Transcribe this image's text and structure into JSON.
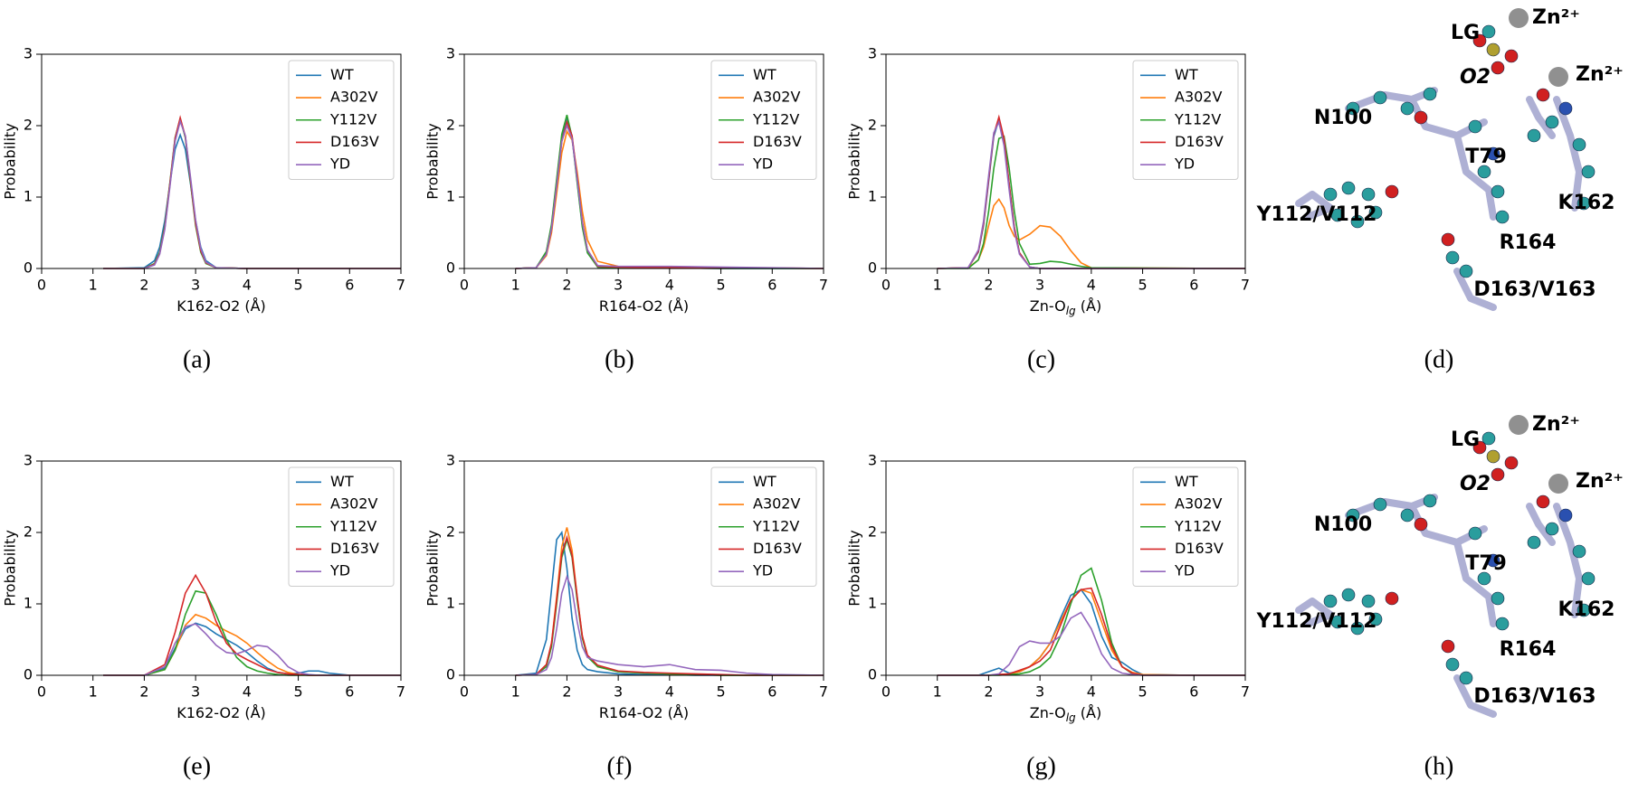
{
  "chart_data": [
    {
      "type": "line",
      "panel_label": "(a)",
      "xlabel": "K162-O2 (Å)",
      "ylabel": "Probability",
      "xlim": [
        0,
        7
      ],
      "ylim": [
        0,
        3
      ],
      "xticks": [
        0,
        1,
        2,
        3,
        4,
        5,
        6,
        7
      ],
      "yticks": [
        0,
        1,
        2,
        3
      ],
      "legend": "upper right",
      "x": [
        1.2,
        2.0,
        2.2,
        2.3,
        2.4,
        2.5,
        2.6,
        2.7,
        2.8,
        2.9,
        3.0,
        3.1,
        3.2,
        3.4,
        4.0,
        7.0
      ],
      "series": [
        {
          "name": "WT",
          "color": "#1f77b4",
          "values": [
            0,
            0.01,
            0.11,
            0.3,
            0.67,
            1.19,
            1.67,
            1.87,
            1.67,
            1.19,
            0.67,
            0.3,
            0.11,
            0.01,
            0,
            0
          ]
        },
        {
          "name": "A302V",
          "color": "#ff7f0e",
          "values": [
            0,
            0,
            0.06,
            0.22,
            0.58,
            1.18,
            1.8,
            2.08,
            1.85,
            1.25,
            0.64,
            0.25,
            0.08,
            0.01,
            0,
            0
          ]
        },
        {
          "name": "Y112V",
          "color": "#2ca02c",
          "values": [
            0,
            0,
            0.07,
            0.23,
            0.6,
            1.21,
            1.83,
            2.1,
            1.83,
            1.21,
            0.6,
            0.23,
            0.07,
            0.01,
            0,
            0
          ]
        },
        {
          "name": "D163V",
          "color": "#d62728",
          "values": [
            0,
            0,
            0.06,
            0.21,
            0.57,
            1.19,
            1.82,
            2.11,
            1.85,
            1.24,
            0.63,
            0.25,
            0.08,
            0.01,
            0,
            0
          ]
        },
        {
          "name": "YD",
          "color": "#9467bd",
          "values": [
            0,
            0,
            0.05,
            0.2,
            0.55,
            1.15,
            1.78,
            2.06,
            1.86,
            1.28,
            0.68,
            0.28,
            0.09,
            0.01,
            0,
            0
          ]
        }
      ]
    },
    {
      "type": "line",
      "panel_label": "(b)",
      "xlabel": "R164-O2 (Å)",
      "ylabel": "Probability",
      "xlim": [
        0,
        7
      ],
      "ylim": [
        0,
        3
      ],
      "xticks": [
        0,
        1,
        2,
        3,
        4,
        5,
        6,
        7
      ],
      "yticks": [
        0,
        1,
        2,
        3
      ],
      "legend": "upper right",
      "x": [
        1.0,
        1.4,
        1.6,
        1.7,
        1.8,
        1.9,
        2.0,
        2.1,
        2.2,
        2.3,
        2.4,
        2.6,
        3.0,
        4.0,
        5.0,
        7.0
      ],
      "series": [
        {
          "name": "WT",
          "color": "#1f77b4",
          "values": [
            0,
            0.01,
            0.23,
            0.6,
            1.22,
            1.85,
            2.12,
            1.85,
            1.22,
            0.6,
            0.23,
            0.02,
            0.01,
            0.01,
            0,
            0
          ]
        },
        {
          "name": "A302V",
          "color": "#ff7f0e",
          "values": [
            0,
            0.01,
            0.18,
            0.5,
            1.05,
            1.62,
            1.92,
            1.8,
            1.35,
            0.8,
            0.4,
            0.1,
            0.03,
            0.02,
            0.01,
            0
          ]
        },
        {
          "name": "Y112V",
          "color": "#2ca02c",
          "values": [
            0,
            0.01,
            0.24,
            0.62,
            1.25,
            1.88,
            2.15,
            1.84,
            1.2,
            0.58,
            0.22,
            0.02,
            0.01,
            0.01,
            0,
            0
          ]
        },
        {
          "name": "D163V",
          "color": "#d62728",
          "values": [
            0,
            0.01,
            0.2,
            0.55,
            1.15,
            1.78,
            2.05,
            1.86,
            1.28,
            0.66,
            0.26,
            0.03,
            0.02,
            0.01,
            0.01,
            0
          ]
        },
        {
          "name": "YD",
          "color": "#9467bd",
          "values": [
            0,
            0.01,
            0.2,
            0.56,
            1.16,
            1.78,
            2.0,
            1.82,
            1.25,
            0.65,
            0.26,
            0.04,
            0.03,
            0.03,
            0.02,
            0
          ]
        }
      ]
    },
    {
      "type": "line",
      "panel_label": "(c)",
      "xlabel": "Zn-O",
      "xlabel_sub": "lg",
      "xlabel_unit": " (Å)",
      "ylabel": "Probability",
      "xlim": [
        0,
        7
      ],
      "ylim": [
        0,
        3
      ],
      "xticks": [
        0,
        1,
        2,
        3,
        4,
        5,
        6,
        7
      ],
      "yticks": [
        0,
        1,
        2,
        3
      ],
      "legend": "upper right",
      "x": [
        1.0,
        1.6,
        1.8,
        1.9,
        2.0,
        2.1,
        2.2,
        2.3,
        2.4,
        2.5,
        2.6,
        2.8,
        3.0,
        3.2,
        3.4,
        3.6,
        3.8,
        4.0,
        7.0
      ],
      "series": [
        {
          "name": "WT",
          "color": "#1f77b4",
          "values": [
            0,
            0.01,
            0.23,
            0.6,
            1.22,
            1.85,
            2.08,
            1.8,
            1.18,
            0.58,
            0.22,
            0.02,
            0,
            0,
            0,
            0,
            0,
            0,
            0
          ]
        },
        {
          "name": "A302V",
          "color": "#ff7f0e",
          "values": [
            0,
            0.01,
            0.12,
            0.3,
            0.6,
            0.88,
            0.97,
            0.85,
            0.6,
            0.45,
            0.4,
            0.48,
            0.6,
            0.58,
            0.45,
            0.25,
            0.08,
            0.01,
            0
          ]
        },
        {
          "name": "Y112V",
          "color": "#2ca02c",
          "values": [
            0,
            0,
            0.12,
            0.35,
            0.8,
            1.4,
            1.82,
            1.85,
            1.4,
            0.8,
            0.35,
            0.06,
            0.07,
            0.1,
            0.09,
            0.06,
            0.03,
            0.01,
            0
          ]
        },
        {
          "name": "D163V",
          "color": "#d62728",
          "values": [
            0,
            0.01,
            0.24,
            0.62,
            1.25,
            1.88,
            2.12,
            1.82,
            1.18,
            0.58,
            0.22,
            0.02,
            0,
            0,
            0,
            0,
            0,
            0,
            0
          ]
        },
        {
          "name": "YD",
          "color": "#9467bd",
          "values": [
            0,
            0.01,
            0.26,
            0.66,
            1.3,
            1.9,
            2.05,
            1.72,
            1.1,
            0.53,
            0.2,
            0.02,
            0,
            0,
            0,
            0,
            0,
            0,
            0
          ]
        }
      ]
    },
    {
      "type": "line",
      "panel_label": "(e)",
      "xlabel": "K162-O2 (Å)",
      "ylabel": "Probability",
      "xlim": [
        0,
        7
      ],
      "ylim": [
        0,
        3
      ],
      "xticks": [
        0,
        1,
        2,
        3,
        4,
        5,
        6,
        7
      ],
      "yticks": [
        0,
        1,
        2,
        3
      ],
      "legend": "upper right",
      "x": [
        1.2,
        2.0,
        2.4,
        2.6,
        2.8,
        3.0,
        3.2,
        3.4,
        3.6,
        3.8,
        4.0,
        4.2,
        4.4,
        4.6,
        4.8,
        5.0,
        5.2,
        5.4,
        5.6,
        6.0,
        7.0
      ],
      "series": [
        {
          "name": "WT",
          "color": "#1f77b4",
          "values": [
            0,
            0,
            0.1,
            0.38,
            0.65,
            0.73,
            0.68,
            0.58,
            0.5,
            0.42,
            0.32,
            0.2,
            0.1,
            0.04,
            0.02,
            0.03,
            0.06,
            0.06,
            0.03,
            0,
            0
          ]
        },
        {
          "name": "A302V",
          "color": "#ff7f0e",
          "values": [
            0,
            0,
            0.08,
            0.35,
            0.7,
            0.85,
            0.8,
            0.7,
            0.62,
            0.55,
            0.45,
            0.32,
            0.2,
            0.1,
            0.04,
            0.01,
            0,
            0,
            0,
            0,
            0
          ]
        },
        {
          "name": "Y112V",
          "color": "#2ca02c",
          "values": [
            0,
            0,
            0.08,
            0.35,
            0.85,
            1.18,
            1.15,
            0.85,
            0.5,
            0.25,
            0.12,
            0.06,
            0.03,
            0.01,
            0,
            0,
            0,
            0,
            0,
            0,
            0
          ]
        },
        {
          "name": "D163V",
          "color": "#d62728",
          "values": [
            0,
            0,
            0.15,
            0.6,
            1.15,
            1.4,
            1.15,
            0.75,
            0.45,
            0.3,
            0.22,
            0.15,
            0.08,
            0.04,
            0.02,
            0.01,
            0,
            0,
            0,
            0,
            0
          ]
        },
        {
          "name": "YD",
          "color": "#9467bd",
          "values": [
            0,
            0,
            0.12,
            0.45,
            0.68,
            0.72,
            0.58,
            0.42,
            0.32,
            0.3,
            0.35,
            0.42,
            0.4,
            0.28,
            0.12,
            0.04,
            0.01,
            0,
            0,
            0,
            0
          ]
        }
      ]
    },
    {
      "type": "line",
      "panel_label": "(f)",
      "xlabel": "R164-O2 (Å)",
      "ylabel": "Probability",
      "xlim": [
        0,
        7
      ],
      "ylim": [
        0,
        3
      ],
      "xticks": [
        0,
        1,
        2,
        3,
        4,
        5,
        6,
        7
      ],
      "yticks": [
        0,
        1,
        2,
        3
      ],
      "legend": "upper right",
      "x": [
        1.0,
        1.4,
        1.6,
        1.7,
        1.8,
        1.9,
        2.0,
        2.1,
        2.2,
        2.3,
        2.4,
        2.6,
        3.0,
        3.5,
        4.0,
        4.5,
        5.0,
        5.5,
        6.0,
        7.0
      ],
      "series": [
        {
          "name": "WT",
          "color": "#1f77b4",
          "values": [
            0,
            0.03,
            0.5,
            1.2,
            1.9,
            2.0,
            1.5,
            0.8,
            0.35,
            0.15,
            0.08,
            0.05,
            0.02,
            0.01,
            0.01,
            0,
            0,
            0,
            0,
            0
          ]
        },
        {
          "name": "A302V",
          "color": "#ff7f0e",
          "values": [
            0,
            0.01,
            0.15,
            0.45,
            1.1,
            1.8,
            2.07,
            1.75,
            1.1,
            0.55,
            0.28,
            0.12,
            0.05,
            0.03,
            0.02,
            0.01,
            0,
            0,
            0,
            0
          ]
        },
        {
          "name": "Y112V",
          "color": "#2ca02c",
          "values": [
            0,
            0.01,
            0.12,
            0.4,
            1.0,
            1.65,
            1.9,
            1.65,
            1.05,
            0.52,
            0.26,
            0.12,
            0.05,
            0.03,
            0.02,
            0.01,
            0,
            0,
            0,
            0
          ]
        },
        {
          "name": "D163V",
          "color": "#d62728",
          "values": [
            0,
            0.01,
            0.15,
            0.45,
            1.05,
            1.7,
            1.93,
            1.68,
            1.1,
            0.55,
            0.28,
            0.14,
            0.06,
            0.04,
            0.03,
            0.02,
            0.01,
            0,
            0,
            0
          ]
        },
        {
          "name": "YD",
          "color": "#9467bd",
          "values": [
            0,
            0.01,
            0.08,
            0.25,
            0.65,
            1.15,
            1.38,
            1.2,
            0.75,
            0.4,
            0.25,
            0.2,
            0.15,
            0.12,
            0.15,
            0.08,
            0.07,
            0.03,
            0.01,
            0
          ]
        }
      ]
    },
    {
      "type": "line",
      "panel_label": "(g)",
      "xlabel": "Zn-O",
      "xlabel_sub": "lg",
      "xlabel_unit": " (Å)",
      "ylabel": "Probability",
      "xlim": [
        0,
        7
      ],
      "ylim": [
        0,
        3
      ],
      "xticks": [
        0,
        1,
        2,
        3,
        4,
        5,
        6,
        7
      ],
      "yticks": [
        0,
        1,
        2,
        3
      ],
      "legend": "upper right",
      "x": [
        1.0,
        1.8,
        2.0,
        2.2,
        2.4,
        2.6,
        2.8,
        3.0,
        3.2,
        3.4,
        3.6,
        3.8,
        4.0,
        4.2,
        4.4,
        4.6,
        4.8,
        5.0,
        6.0,
        7.0
      ],
      "series": [
        {
          "name": "WT",
          "color": "#1f77b4",
          "values": [
            0,
            0,
            0.05,
            0.1,
            0.03,
            0.05,
            0.12,
            0.25,
            0.45,
            0.8,
            1.12,
            1.2,
            1.0,
            0.55,
            0.25,
            0.18,
            0.08,
            0.01,
            0,
            0
          ]
        },
        {
          "name": "A302V",
          "color": "#ff7f0e",
          "values": [
            0,
            0,
            0,
            0.01,
            0.02,
            0.05,
            0.12,
            0.25,
            0.45,
            0.75,
            1.05,
            1.2,
            1.15,
            0.75,
            0.35,
            0.12,
            0.04,
            0.01,
            0,
            0
          ]
        },
        {
          "name": "Y112V",
          "color": "#2ca02c",
          "values": [
            0,
            0,
            0,
            0,
            0.01,
            0.02,
            0.05,
            0.12,
            0.25,
            0.55,
            1.0,
            1.4,
            1.5,
            1.05,
            0.45,
            0.12,
            0.02,
            0,
            0,
            0
          ]
        },
        {
          "name": "D163V",
          "color": "#d62728",
          "values": [
            0,
            0,
            0,
            0.01,
            0.02,
            0.07,
            0.12,
            0.2,
            0.35,
            0.7,
            1.05,
            1.2,
            1.22,
            0.85,
            0.4,
            0.12,
            0.03,
            0,
            0,
            0
          ]
        },
        {
          "name": "YD",
          "color": "#9467bd",
          "values": [
            0,
            0,
            0,
            0.02,
            0.15,
            0.4,
            0.48,
            0.45,
            0.45,
            0.55,
            0.8,
            0.88,
            0.65,
            0.3,
            0.1,
            0.03,
            0.01,
            0,
            0,
            0
          ]
        }
      ]
    }
  ],
  "structures": [
    {
      "panel_label": "(d)",
      "labels": [
        "Zn²⁺",
        "LG",
        "Zn²⁺",
        "O2",
        "N100",
        "T79",
        "K162",
        "Y112/V112",
        "R164",
        "D163/V163"
      ]
    },
    {
      "panel_label": "(h)",
      "labels": [
        "Zn²⁺",
        "LG",
        "Zn²⁺",
        "O2",
        "N100",
        "T79",
        "K162",
        "Y112/V112",
        "R164",
        "D163/V163"
      ]
    }
  ]
}
